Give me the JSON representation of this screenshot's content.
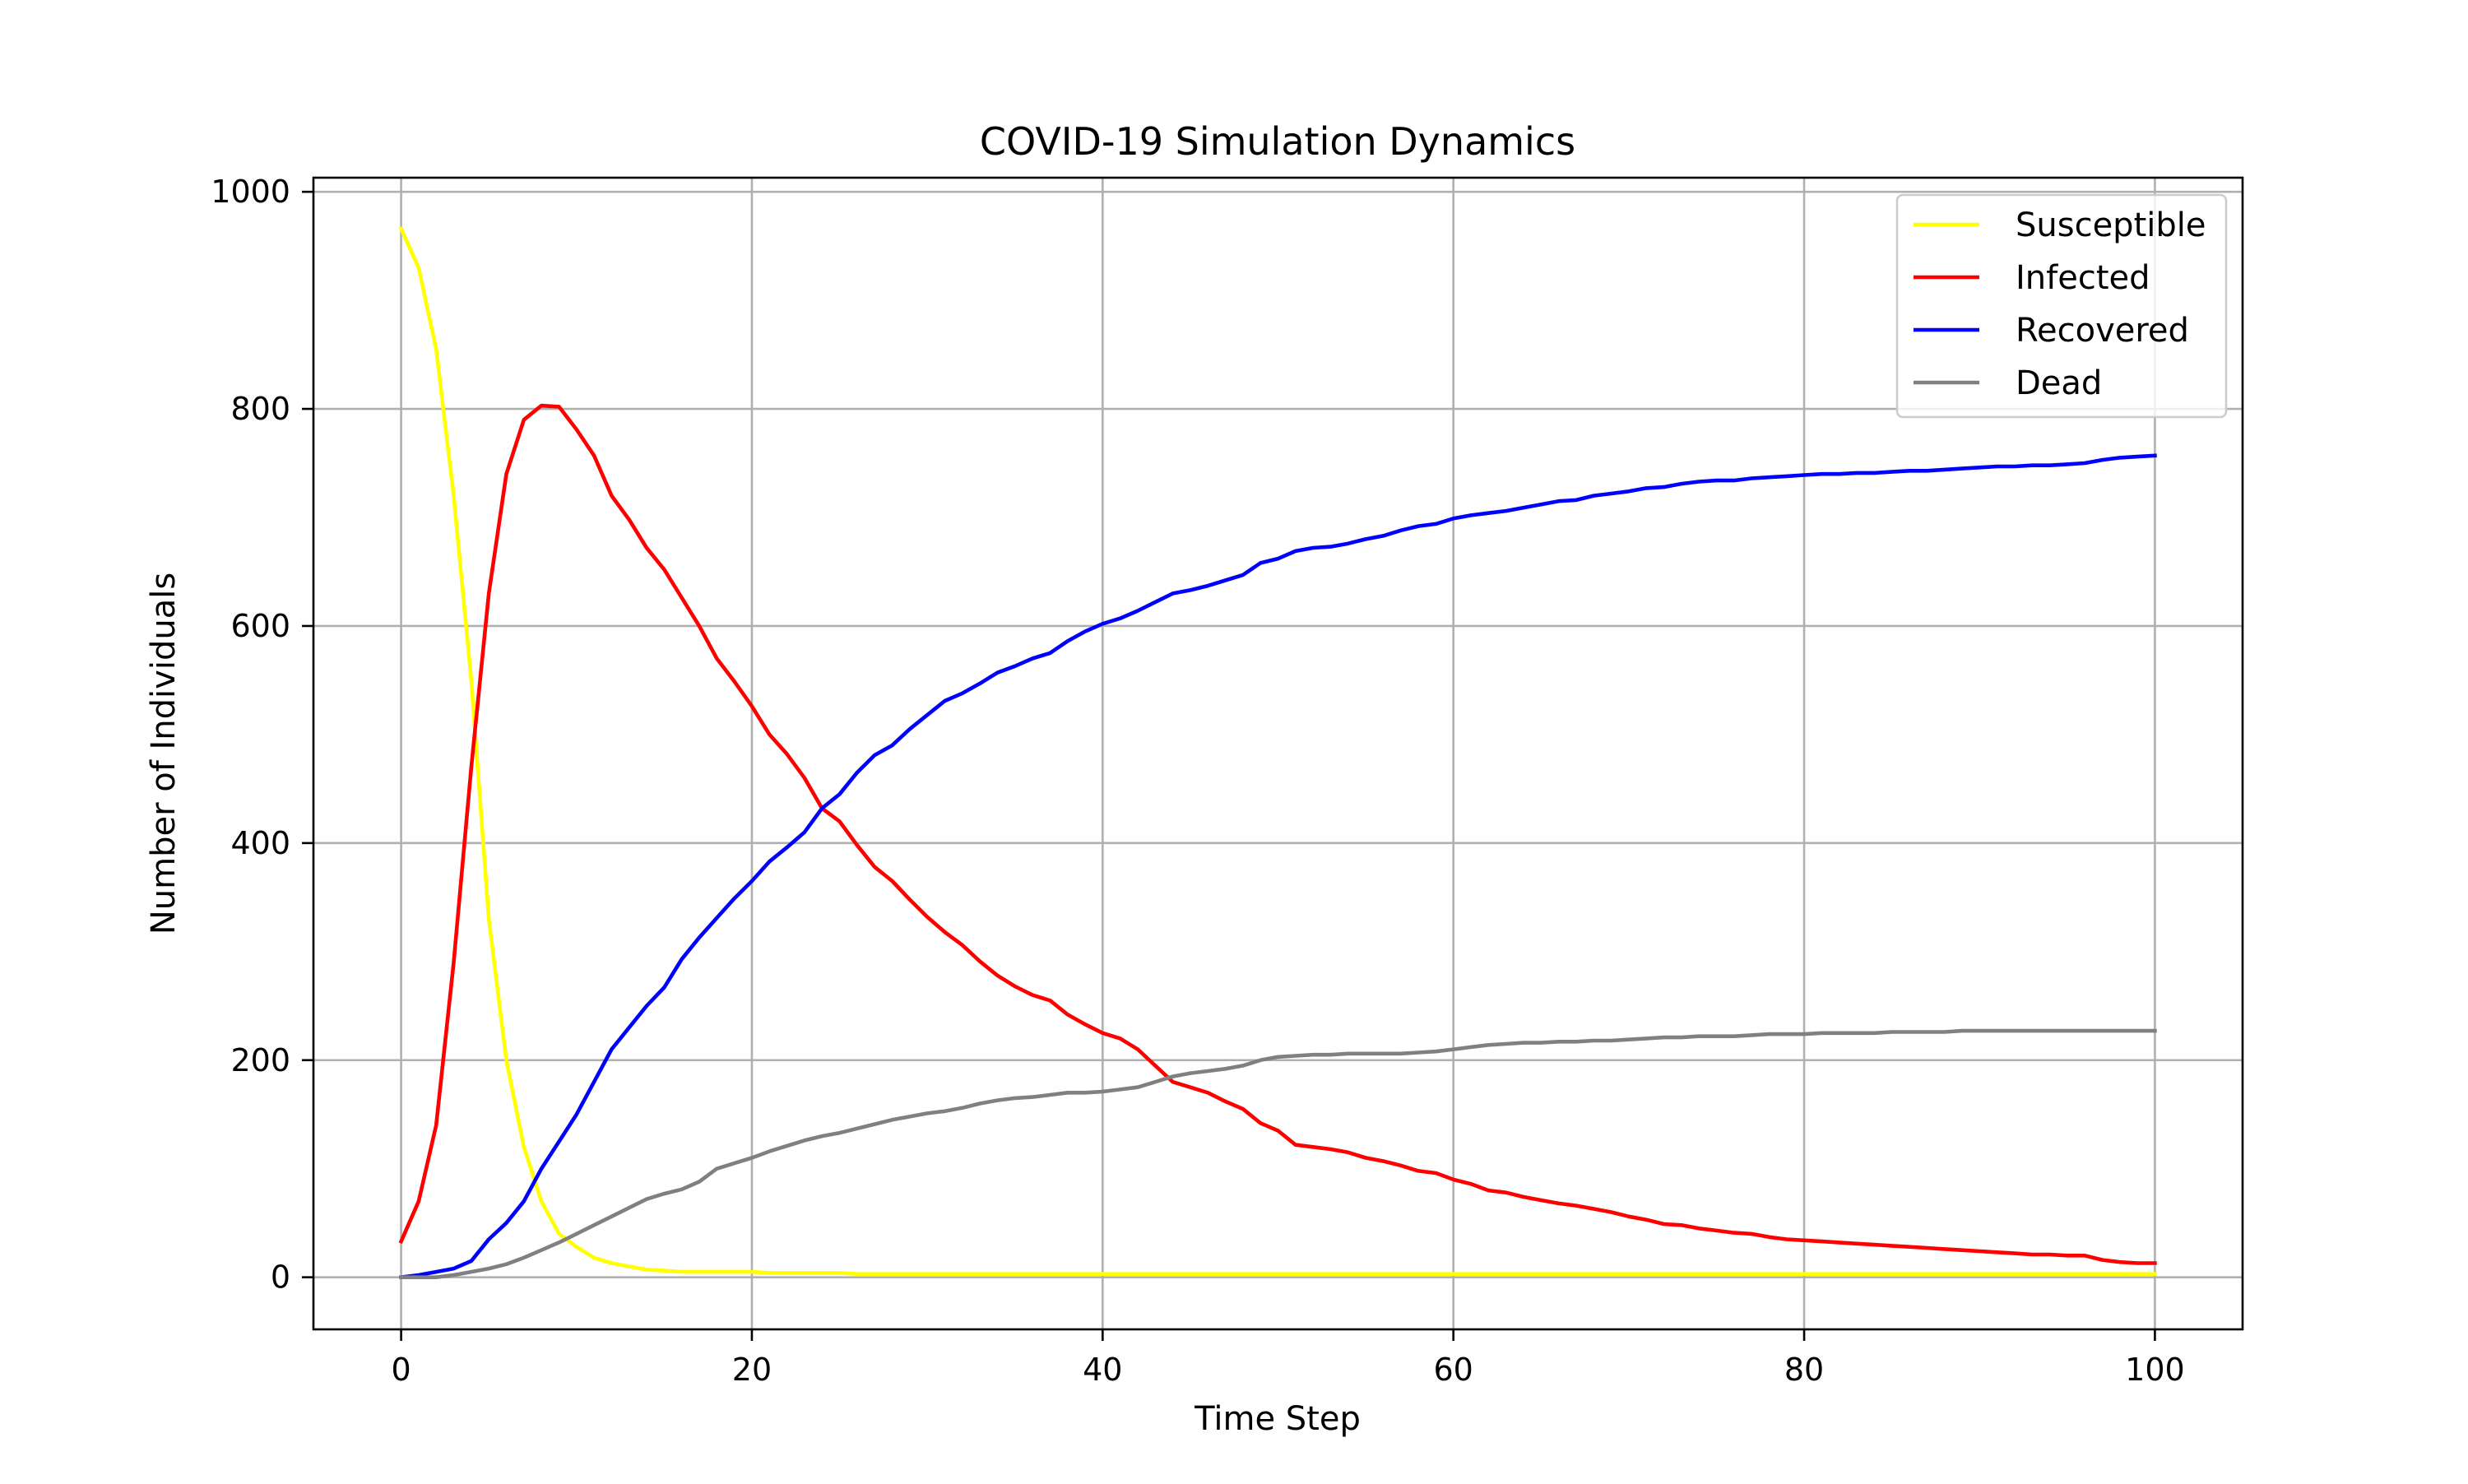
{
  "chart_data": {
    "type": "line",
    "title": "COVID-19 Simulation Dynamics",
    "xlabel": "Time Step",
    "ylabel": "Number of Individuals",
    "xlim": [
      -5,
      105
    ],
    "ylim": [
      -48,
      1013
    ],
    "xticks": [
      0,
      20,
      40,
      60,
      80,
      100
    ],
    "yticks": [
      0,
      200,
      400,
      600,
      800,
      1000
    ],
    "grid": true,
    "legend_position": "upper right",
    "x": [
      0,
      1,
      2,
      3,
      4,
      5,
      6,
      7,
      8,
      9,
      10,
      11,
      12,
      13,
      14,
      15,
      16,
      17,
      18,
      19,
      20,
      21,
      22,
      23,
      24,
      25,
      26,
      27,
      28,
      29,
      30,
      31,
      32,
      33,
      34,
      35,
      36,
      37,
      38,
      39,
      40,
      41,
      42,
      43,
      44,
      45,
      46,
      47,
      48,
      49,
      50,
      51,
      52,
      53,
      54,
      55,
      56,
      57,
      58,
      59,
      60,
      61,
      62,
      63,
      64,
      65,
      66,
      67,
      68,
      69,
      70,
      71,
      72,
      73,
      74,
      75,
      76,
      77,
      78,
      79,
      80,
      81,
      82,
      83,
      84,
      85,
      86,
      87,
      88,
      89,
      90,
      91,
      92,
      93,
      94,
      95,
      96,
      97,
      98,
      99,
      100
    ],
    "series": [
      {
        "name": "Susceptible",
        "color": "#ffff00",
        "values": [
          966,
          930,
          855,
          720,
          550,
          330,
          200,
          120,
          70,
          40,
          28,
          18,
          13,
          10,
          7,
          6,
          5,
          5,
          5,
          5,
          5,
          4,
          4,
          4,
          4,
          4,
          3,
          3,
          3,
          3,
          3,
          3,
          3,
          3,
          3,
          3,
          3,
          3,
          3,
          3,
          3,
          3,
          3,
          3,
          3,
          3,
          3,
          3,
          3,
          3,
          3,
          3,
          3,
          3,
          3,
          3,
          3,
          3,
          3,
          3,
          3,
          3,
          3,
          3,
          3,
          3,
          3,
          3,
          3,
          3,
          3,
          3,
          3,
          3,
          3,
          3,
          3,
          3,
          3,
          3,
          3,
          3,
          3,
          3,
          3,
          3,
          3,
          3,
          3,
          3,
          3,
          3,
          3,
          3,
          3,
          3,
          3,
          3,
          3,
          3,
          3
        ]
      },
      {
        "name": "Infected",
        "color": "#ff0000",
        "values": [
          33,
          70,
          140,
          290,
          470,
          630,
          740,
          790,
          803,
          802,
          781,
          757,
          720,
          698,
          672,
          652,
          626,
          600,
          570,
          549,
          526,
          500,
          482,
          460,
          432,
          420,
          398,
          378,
          365,
          348,
          332,
          318,
          306,
          291,
          278,
          268,
          260,
          255,
          242,
          233,
          225,
          220,
          210,
          195,
          180,
          175,
          170,
          162,
          155,
          142,
          135,
          122,
          120,
          118,
          115,
          110,
          107,
          103,
          98,
          96,
          90,
          86,
          80,
          78,
          74,
          71,
          68,
          66,
          63,
          60,
          56,
          53,
          49,
          48,
          45,
          43,
          41,
          40,
          37,
          35,
          34,
          33,
          32,
          31,
          30,
          29,
          28,
          27,
          26,
          25,
          24,
          23,
          22,
          21,
          21,
          20,
          20,
          16,
          14,
          13,
          13
        ]
      },
      {
        "name": "Recovered",
        "color": "#0000ff",
        "values": [
          0,
          2,
          5,
          8,
          15,
          35,
          50,
          70,
          100,
          125,
          150,
          180,
          210,
          230,
          250,
          267,
          293,
          313,
          331,
          349,
          365,
          383,
          396,
          410,
          432,
          445,
          465,
          481,
          490,
          505,
          518,
          531,
          538,
          547,
          557,
          563,
          570,
          575,
          586,
          595,
          602,
          607,
          614,
          622,
          630,
          633,
          637,
          642,
          647,
          658,
          662,
          669,
          672,
          673,
          676,
          680,
          683,
          688,
          692,
          694,
          699,
          702,
          704,
          706,
          709,
          712,
          715,
          716,
          720,
          722,
          724,
          727,
          728,
          731,
          733,
          734,
          734,
          736,
          737,
          738,
          739,
          740,
          740,
          741,
          741,
          742,
          743,
          743,
          744,
          745,
          746,
          747,
          747,
          748,
          748,
          749,
          750,
          753,
          755,
          756,
          757
        ]
      },
      {
        "name": "Dead",
        "color": "#808080",
        "values": [
          0,
          0,
          0,
          2,
          5,
          8,
          12,
          18,
          25,
          32,
          40,
          48,
          56,
          64,
          72,
          77,
          81,
          88,
          100,
          105,
          110,
          116,
          121,
          126,
          130,
          133,
          137,
          141,
          145,
          148,
          151,
          153,
          156,
          160,
          163,
          165,
          166,
          168,
          170,
          170,
          171,
          173,
          175,
          180,
          185,
          188,
          190,
          192,
          195,
          200,
          203,
          204,
          205,
          205,
          206,
          206,
          206,
          206,
          207,
          208,
          210,
          212,
          214,
          215,
          216,
          216,
          217,
          217,
          218,
          218,
          219,
          220,
          221,
          221,
          222,
          222,
          222,
          223,
          224,
          224,
          224,
          225,
          225,
          225,
          225,
          226,
          226,
          226,
          226,
          227,
          227,
          227,
          227,
          227,
          227,
          227,
          227,
          227,
          227,
          227,
          227
        ]
      }
    ]
  }
}
